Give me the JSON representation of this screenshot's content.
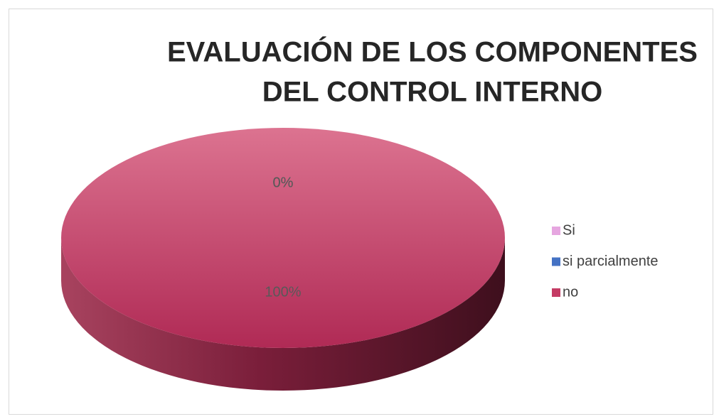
{
  "chart_data": {
    "type": "pie3d",
    "title": [
      "EVALUACIÓN DE LOS COMPONENTES",
      "DEL CONTROL INTERNO"
    ],
    "categories": [
      "Si",
      "si parcialmente",
      "no"
    ],
    "values": [
      0,
      0,
      100
    ],
    "value_labels": [
      "0%",
      "0%",
      "100%"
    ],
    "colors": [
      "#e6a6e0",
      "#4472c4",
      "#c43b64"
    ],
    "legend": "right"
  }
}
